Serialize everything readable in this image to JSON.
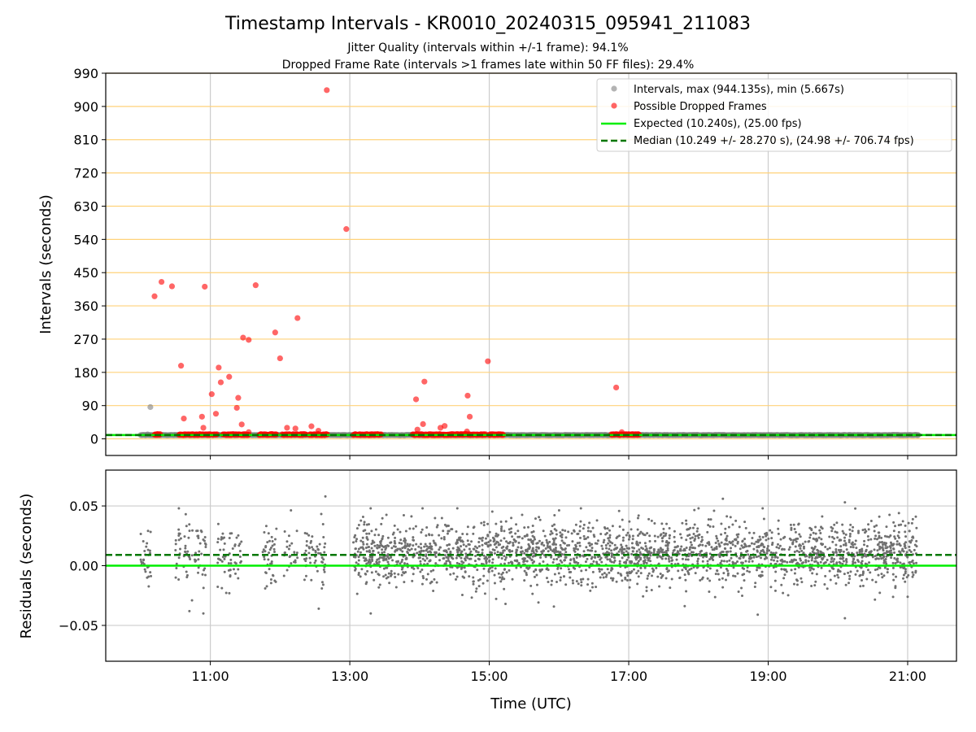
{
  "chart_data": [
    {
      "type": "scatter",
      "title": "Timestamp Intervals - KR0010_20240315_095941_211083",
      "subtitle_lines": [
        "Jitter Quality (intervals within +/-1 frame): 94.1%",
        "Dropped Frame Rate (intervals >1 frames late within 50 FF files): 29.4%"
      ],
      "xlabel": "",
      "ylabel": "Intervals (seconds)",
      "xlim_hours": [
        9.5,
        21.7
      ],
      "ylim": [
        -45,
        990
      ],
      "yticks": [
        0,
        90,
        180,
        270,
        360,
        450,
        540,
        630,
        720,
        810,
        900,
        990
      ],
      "ytick_labels": [
        "0",
        "90",
        "180",
        "270",
        "360",
        "450",
        "540",
        "630",
        "720",
        "810",
        "900",
        "990"
      ],
      "xticks_hours": [
        11,
        13,
        15,
        17,
        19,
        21
      ],
      "grid": "x (gray) and y (orange)",
      "legend_position": "top-right",
      "legend": [
        "Intervals, max (944.135s), min (5.667s)",
        "Possible Dropped Frames",
        "Expected (10.240s), (25.00 fps)",
        "Median (10.249 +/- 28.270 s), (24.98 +/- 706.74 fps)"
      ],
      "colors": {
        "intervals": "#808080",
        "dropped": "#ff0000",
        "expected": "#00ee00",
        "median": "#007700",
        "ygrid": "#ffd27a",
        "xgrid": "#cccccc"
      },
      "expected_line": 10.24,
      "median_line": 10.249,
      "intervals_baseline": {
        "value": 10.24,
        "time_range_hours": [
          10.0,
          21.15
        ]
      },
      "intervals_points": [
        {
          "x": 10.07,
          "y": 10.5
        },
        {
          "x": 10.1,
          "y": 12
        },
        {
          "x": 10.14,
          "y": 86
        },
        {
          "x": 10.48,
          "y": 10.3
        },
        {
          "x": 19.0,
          "y": 10.2
        },
        {
          "x": 21.15,
          "y": 10.4
        }
      ],
      "dropped_points": [
        {
          "x": 10.2,
          "y": 386
        },
        {
          "x": 10.3,
          "y": 425
        },
        {
          "x": 10.45,
          "y": 413
        },
        {
          "x": 10.58,
          "y": 198
        },
        {
          "x": 10.62,
          "y": 55
        },
        {
          "x": 10.88,
          "y": 60
        },
        {
          "x": 10.9,
          "y": 30
        },
        {
          "x": 10.92,
          "y": 412
        },
        {
          "x": 11.02,
          "y": 121
        },
        {
          "x": 11.08,
          "y": 68
        },
        {
          "x": 11.12,
          "y": 193
        },
        {
          "x": 11.15,
          "y": 153
        },
        {
          "x": 11.27,
          "y": 168
        },
        {
          "x": 11.38,
          "y": 84
        },
        {
          "x": 11.4,
          "y": 111
        },
        {
          "x": 11.45,
          "y": 39
        },
        {
          "x": 11.47,
          "y": 274
        },
        {
          "x": 11.55,
          "y": 268
        },
        {
          "x": 11.55,
          "y": 18
        },
        {
          "x": 11.65,
          "y": 416
        },
        {
          "x": 11.93,
          "y": 288
        },
        {
          "x": 12.0,
          "y": 218
        },
        {
          "x": 12.1,
          "y": 30
        },
        {
          "x": 12.22,
          "y": 28
        },
        {
          "x": 12.25,
          "y": 327
        },
        {
          "x": 12.45,
          "y": 34
        },
        {
          "x": 12.55,
          "y": 22
        },
        {
          "x": 12.67,
          "y": 944.135
        },
        {
          "x": 12.95,
          "y": 568
        },
        {
          "x": 13.95,
          "y": 107
        },
        {
          "x": 13.97,
          "y": 25
        },
        {
          "x": 14.05,
          "y": 40
        },
        {
          "x": 14.07,
          "y": 155
        },
        {
          "x": 14.3,
          "y": 30
        },
        {
          "x": 14.36,
          "y": 35
        },
        {
          "x": 14.69,
          "y": 117
        },
        {
          "x": 14.72,
          "y": 60
        },
        {
          "x": 14.68,
          "y": 20
        },
        {
          "x": 14.98,
          "y": 210
        },
        {
          "x": 16.82,
          "y": 139
        },
        {
          "x": 16.9,
          "y": 18
        }
      ],
      "dropped_baseline_clusters": [
        {
          "from": 10.2,
          "to": 10.28
        },
        {
          "from": 10.55,
          "to": 11.0
        },
        {
          "from": 11.03,
          "to": 11.1
        },
        {
          "from": 11.18,
          "to": 11.55
        },
        {
          "from": 11.7,
          "to": 11.95
        },
        {
          "from": 12.03,
          "to": 12.38
        },
        {
          "from": 12.42,
          "to": 12.68
        },
        {
          "from": 13.05,
          "to": 13.45
        },
        {
          "from": 13.9,
          "to": 14.95
        },
        {
          "from": 15.0,
          "to": 15.2
        },
        {
          "from": 16.75,
          "to": 17.15
        }
      ]
    },
    {
      "type": "scatter",
      "xlabel": "Time (UTC)",
      "ylabel": "Residuals (seconds)",
      "xlim_hours": [
        9.5,
        21.7
      ],
      "ylim": [
        -0.08,
        0.08
      ],
      "yticks": [
        -0.05,
        0.0,
        0.05
      ],
      "ytick_labels": [
        "−0.05",
        "0.00",
        "0.05"
      ],
      "xticks_hours": [
        11,
        13,
        15,
        17,
        19,
        21
      ],
      "xtick_labels": [
        "11:00",
        "13:00",
        "15:00",
        "17:00",
        "19:00",
        "21:00"
      ],
      "grid": "x and y (gray)",
      "expected_line": 0.0,
      "median_line": 0.009,
      "residual_point_color": "#707070",
      "residual_time_blocks": [
        {
          "from": 10.0,
          "to": 10.15,
          "density": 30
        },
        {
          "from": 10.5,
          "to": 10.95,
          "density": 70
        },
        {
          "from": 11.1,
          "to": 11.45,
          "density": 55
        },
        {
          "from": 11.75,
          "to": 11.95,
          "density": 40
        },
        {
          "from": 12.05,
          "to": 12.25,
          "density": 25
        },
        {
          "from": 12.35,
          "to": 12.65,
          "density": 60
        },
        {
          "from": 13.05,
          "to": 21.15,
          "density": 2400
        }
      ],
      "residual_outliers": [
        {
          "x": 12.65,
          "y": 0.058
        },
        {
          "x": 18.35,
          "y": 0.056
        },
        {
          "x": 20.1,
          "y": 0.053
        },
        {
          "x": 10.7,
          "y": -0.038
        },
        {
          "x": 10.9,
          "y": -0.04
        },
        {
          "x": 13.3,
          "y": -0.04
        },
        {
          "x": 18.85,
          "y": -0.041
        },
        {
          "x": 20.1,
          "y": -0.044
        },
        {
          "x": 21.0,
          "y": -0.026
        }
      ]
    }
  ]
}
